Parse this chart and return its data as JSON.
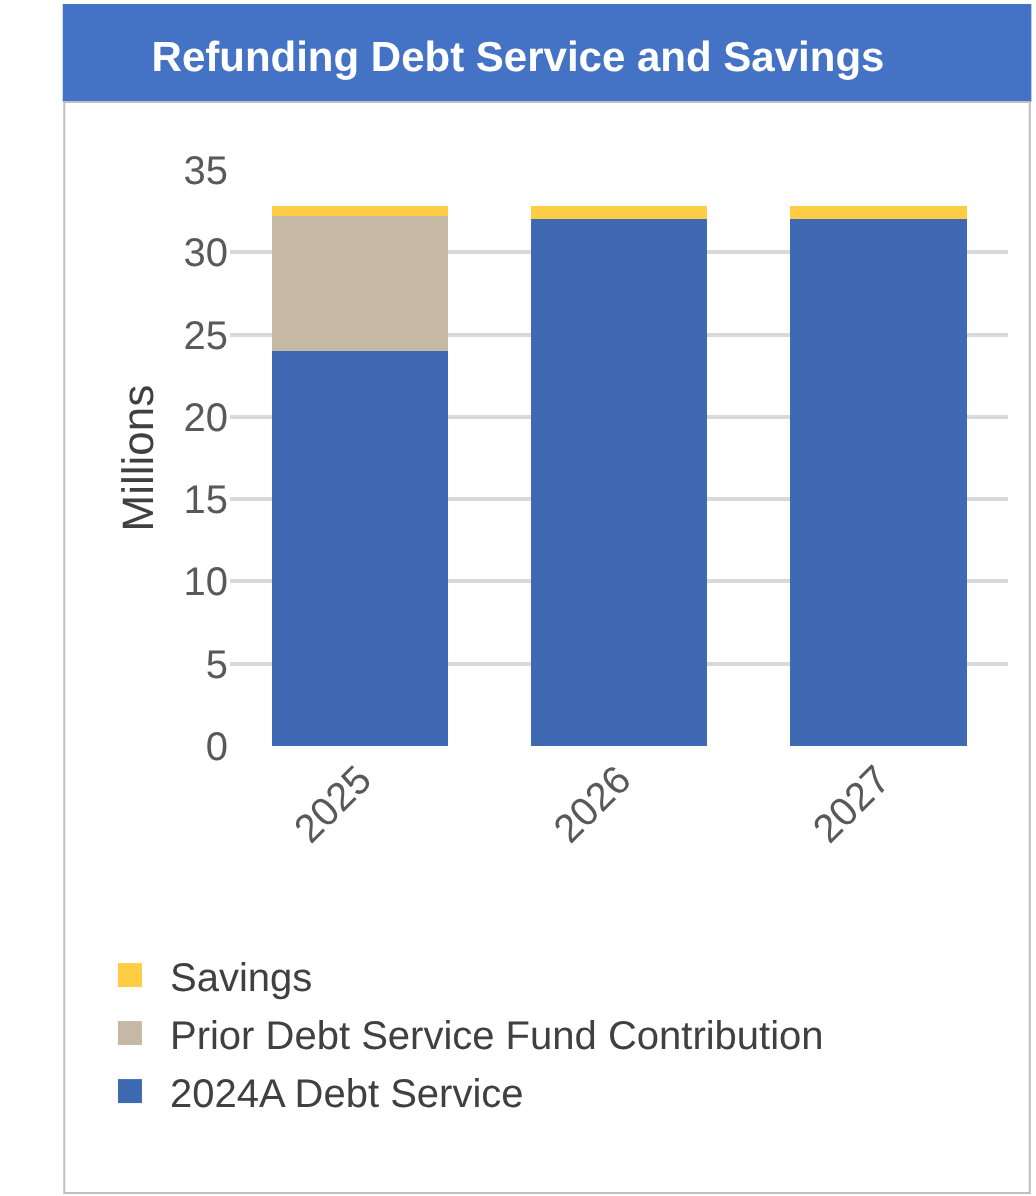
{
  "chart_data": {
    "type": "bar",
    "title": "Refunding Debt Service and Savings",
    "ylabel": "Millions",
    "categories": [
      "2025",
      "2026",
      "2027"
    ],
    "stacked": true,
    "series": [
      {
        "name": "2024A Debt Service",
        "color": "#3f6ab3",
        "values": [
          24.0,
          32.0,
          32.0
        ]
      },
      {
        "name": "Prior Debt Service Fund Contribution",
        "color": "#c5b8a5",
        "values": [
          8.2,
          0,
          0
        ]
      },
      {
        "name": "Savings",
        "color": "#ffcd44",
        "values": [
          0.6,
          0.8,
          0.8
        ]
      }
    ],
    "ylim": [
      0,
      35
    ],
    "yticks": [
      0,
      5,
      10,
      15,
      20,
      25,
      30,
      35
    ],
    "grid": "y",
    "legend": "bottom"
  }
}
